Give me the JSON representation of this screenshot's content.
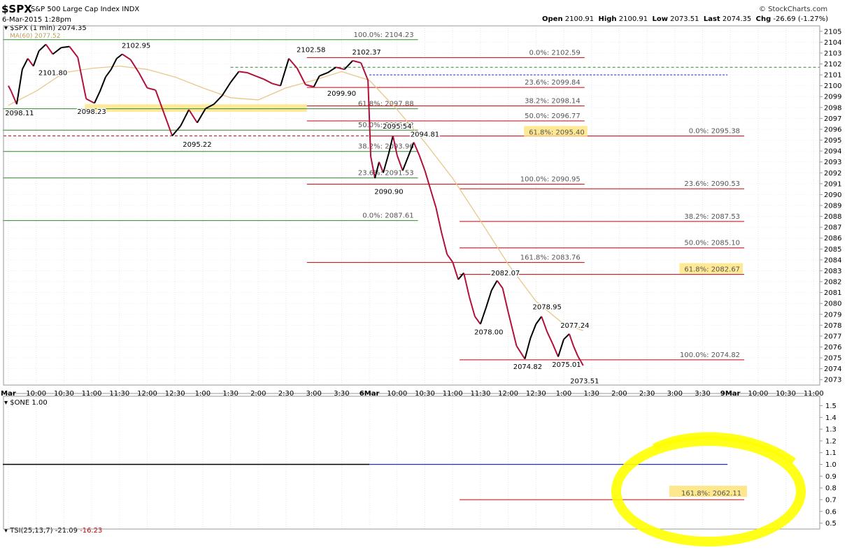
{
  "header": {
    "ticker": "$SPX",
    "name": "S&P 500 Large Cap Index",
    "exchange": "INDX",
    "date": "6-Mar-2015 1:28pm",
    "logo": "© StockCharts.com",
    "open_label": "Open",
    "open": "2100.91",
    "high_label": "High",
    "high": "2100.91",
    "low_label": "Low",
    "low": "2073.51",
    "last_label": "Last",
    "last": "2074.35",
    "chg_label": "Chg",
    "chg": "-26.69 (-1.27%)"
  },
  "legend": {
    "price": "$SPX (1 min) 2074.35",
    "ma": "MA(60) 2077.52",
    "indicator": "$ONE 1.00",
    "tsi": "TSI(25,13,7) -21.09",
    "tsi_signal": "-16.23"
  },
  "colors": {
    "candle_up": "#000000",
    "candle_down": "#b0103a",
    "ma_line": "#e8c88a",
    "fib_red": "#c00000",
    "fib_green": "#2d8a2d",
    "highlight": "#ffe37a",
    "dash_green": "#2d8a2d",
    "dash_blue": "#1f2fbf",
    "circle": "#ffff00"
  },
  "chart_data": [
    {
      "type": "line",
      "title": "",
      "xlabel": "",
      "ylabel": "",
      "ylim": [
        2072.5,
        2105.5
      ],
      "yticks": [
        "2105",
        "2104",
        "2103",
        "2102",
        "2101",
        "2100",
        "2099",
        "2098",
        "2097",
        "2096",
        "2095",
        "2094",
        "2093",
        "2092",
        "2091",
        "2090",
        "2089",
        "2088",
        "2087",
        "2086",
        "2085",
        "2084",
        "2083",
        "2082",
        "2081",
        "2080",
        "2079",
        "2078",
        "2077",
        "2076",
        "2075",
        "2074",
        "2073"
      ],
      "xtick_labels": [
        "Mar",
        "10:00",
        "10:30",
        "11:00",
        "11:30",
        "12:00",
        "12:30",
        "1:00",
        "1:30",
        "2:00",
        "2:30",
        "3:00",
        "3:30",
        "6Mar",
        "10:00",
        "10:30",
        "11:00",
        "11:30",
        "12:00",
        "12:30",
        "1:00",
        "1:30",
        "2:00",
        "2:30",
        "3:00",
        "3:30",
        "9Mar",
        "10:00",
        "10:30",
        "11:00"
      ],
      "price_series": {
        "name": "$SPX (1 min)",
        "x": [
          0,
          0.1,
          0.3,
          0.5,
          0.7,
          0.9,
          1.1,
          1.35,
          1.6,
          1.9,
          2.2,
          2.5,
          2.8,
          3.1,
          3.3,
          3.5,
          3.7,
          3.9,
          4.1,
          4.4,
          4.7,
          5.0,
          5.3,
          5.6,
          5.9,
          6.2,
          6.5,
          6.8,
          7.1,
          7.4,
          7.7,
          8.0,
          8.3,
          8.6,
          8.9,
          9.2,
          9.5,
          9.8,
          10.1,
          10.4,
          10.7,
          11.0,
          11.2,
          11.5,
          11.8,
          12.1,
          12.4,
          12.7,
          12.95,
          13.05,
          13.2,
          13.35,
          13.5,
          13.7,
          13.85,
          14.0,
          14.2,
          14.4,
          14.6,
          14.8,
          15.0,
          15.2,
          15.4,
          15.6,
          15.8,
          16.0,
          16.2,
          16.4,
          16.6,
          16.8,
          17.0,
          17.2,
          17.4,
          17.6,
          17.8,
          18.0,
          18.3,
          18.6,
          18.8,
          19.0,
          19.2,
          19.4,
          19.6,
          19.8,
          20.0,
          20.2,
          20.35,
          20.5,
          20.7
        ],
        "values": [
          2100,
          2099.5,
          2098.3,
          2101.5,
          2102.5,
          2101.8,
          2103.2,
          2103.8,
          2102.9,
          2103.5,
          2103.6,
          2102.6,
          2098.8,
          2098.4,
          2099.5,
          2100.8,
          2101.5,
          2102.5,
          2102.9,
          2102.4,
          2101.2,
          2099.8,
          2099.6,
          2097.5,
          2095.4,
          2096.3,
          2097.8,
          2096.6,
          2097.9,
          2098.3,
          2099.1,
          2100.3,
          2101.3,
          2101.2,
          2100.9,
          2100.6,
          2100.2,
          2100,
          2102.5,
          2101.6,
          2100.1,
          2099.9,
          2100.9,
          2101.2,
          2101.7,
          2101.5,
          2102.3,
          2102.1,
          2100.5,
          2093.5,
          2091.5,
          2093,
          2092,
          2093.8,
          2095.4,
          2093.6,
          2092.2,
          2093.5,
          2094.8,
          2093.6,
          2092.2,
          2090.5,
          2088.8,
          2086.5,
          2084.5,
          2083.8,
          2082.2,
          2082.8,
          2080.6,
          2078.8,
          2078.1,
          2079.6,
          2081.2,
          2082.1,
          2081.4,
          2079.2,
          2076.1,
          2074.9,
          2076.8,
          2078.1,
          2078.8,
          2077.4,
          2076.3,
          2075.1,
          2076.7,
          2077.2,
          2076.1,
          2075.2,
          2074.3
        ]
      },
      "ma_series": {
        "name": "MA(60)",
        "x": [
          0,
          1,
          2,
          3,
          4,
          5,
          6,
          7,
          8,
          9,
          10,
          11,
          12,
          13,
          14,
          15,
          16,
          17,
          18,
          19,
          20,
          20.7
        ],
        "values": [
          2098.2,
          2099.5,
          2101.2,
          2101.6,
          2101.8,
          2101.5,
          2100.8,
          2099.8,
          2098.9,
          2098.7,
          2099.8,
          2100.5,
          2101.3,
          2100.5,
          2097.8,
          2094.8,
          2091.5,
          2087.6,
          2083.6,
          2080.2,
          2078.1,
          2077.5
        ]
      },
      "price_labels": [
        {
          "x": 0.4,
          "value": 2098.11,
          "text": "2098.11",
          "pos": "below"
        },
        {
          "x": 1.6,
          "value": 2101.8,
          "text": "2101.80",
          "pos": "below"
        },
        {
          "x": 3.0,
          "value": 2098.23,
          "text": "2098.23",
          "pos": "below"
        },
        {
          "x": 4.6,
          "value": 2102.95,
          "text": "2102.95",
          "pos": "above"
        },
        {
          "x": 6.8,
          "value": 2095.22,
          "text": "2095.22",
          "pos": "below"
        },
        {
          "x": 10.9,
          "value": 2102.58,
          "text": "2102.58",
          "pos": "above"
        },
        {
          "x": 12.0,
          "value": 2099.9,
          "text": "2099.90",
          "pos": "below"
        },
        {
          "x": 12.9,
          "value": 2102.37,
          "text": "2102.37",
          "pos": "above"
        },
        {
          "x": 14.0,
          "value": 2095.54,
          "text": "2095.54",
          "pos": "above"
        },
        {
          "x": 15.0,
          "value": 2094.81,
          "text": "2094.81",
          "pos": "above"
        },
        {
          "x": 13.7,
          "value": 2090.9,
          "text": "2090.90",
          "pos": "below"
        },
        {
          "x": 17.9,
          "value": 2082.07,
          "text": "2082.07",
          "pos": "above"
        },
        {
          "x": 17.3,
          "value": 2078.0,
          "text": "2078.00",
          "pos": "below"
        },
        {
          "x": 19.4,
          "value": 2078.95,
          "text": "2078.95",
          "pos": "above"
        },
        {
          "x": 20.4,
          "value": 2077.24,
          "text": "2077.24",
          "pos": "above"
        },
        {
          "x": 18.7,
          "value": 2074.82,
          "text": "2074.82",
          "pos": "below"
        },
        {
          "x": 20.1,
          "value": 2075.01,
          "text": "2075.01",
          "pos": "below"
        },
        {
          "x": 20.75,
          "value": 2073.51,
          "text": "2073.51",
          "pos": "below"
        }
      ],
      "fib_lines": [
        {
          "x0": -0.2,
          "x1": 14.75,
          "value": 2104.23,
          "label": "100.0%: 2104.23",
          "color": "green"
        },
        {
          "x0": -0.2,
          "x1": 14.75,
          "value": 2097.88,
          "label": "61.8%: 2097.88",
          "color": "green"
        },
        {
          "x0": -0.2,
          "x1": 14.75,
          "value": 2095.92,
          "label": "50.0%: 2095.92",
          "color": "green"
        },
        {
          "x0": -0.2,
          "x1": 14.75,
          "value": 2093.96,
          "label": "38.2%: 2093.96",
          "color": "green"
        },
        {
          "x0": -0.2,
          "x1": 14.75,
          "value": 2091.53,
          "label": "23.6%: 2091.53",
          "color": "green"
        },
        {
          "x0": -0.2,
          "x1": 14.75,
          "value": 2087.61,
          "label": "0.0%: 2087.61",
          "color": "green"
        },
        {
          "x0": 10.75,
          "x1": 20.75,
          "value": 2102.59,
          "label": "0.0%: 2102.59",
          "color": "red"
        },
        {
          "x0": 10.75,
          "x1": 20.75,
          "value": 2099.84,
          "label": "23.6%: 2099.84",
          "color": "red"
        },
        {
          "x0": 10.75,
          "x1": 20.75,
          "value": 2098.14,
          "label": "38.2%: 2098.14",
          "color": "red"
        },
        {
          "x0": 10.75,
          "x1": 20.75,
          "value": 2096.77,
          "label": "50.0%: 2096.77",
          "color": "red"
        },
        {
          "x0": 10.75,
          "x1": 20.75,
          "value": 2090.95,
          "label": "100.0%: 2090.95",
          "color": "red"
        },
        {
          "x0": 10.75,
          "x1": 20.75,
          "value": 2083.76,
          "label": "161.8%: 2083.76",
          "color": "red"
        },
        {
          "x0": 13.0,
          "x1": 26.5,
          "value": 2095.38,
          "label": "0.0%: 2095.38",
          "color": "red"
        },
        {
          "x0": 16.25,
          "x1": 26.5,
          "value": 2090.53,
          "label": "23.6%: 2090.53",
          "color": "red"
        },
        {
          "x0": 16.25,
          "x1": 26.5,
          "value": 2087.53,
          "label": "38.2%: 2087.53",
          "color": "red"
        },
        {
          "x0": 16.25,
          "x1": 26.5,
          "value": 2085.1,
          "label": "50.0%: 2085.10",
          "color": "red"
        },
        {
          "x0": 16.25,
          "x1": 26.5,
          "value": 2082.67,
          "label": "61.8%: 2082.67",
          "color": "red"
        },
        {
          "x0": 16.25,
          "x1": 26.5,
          "value": 2074.82,
          "label": "100.0%: 2074.82",
          "color": "red"
        }
      ],
      "highlighted_labels": [
        "61.8%: 2095.40",
        "61.8%: 2082.67"
      ]
    },
    {
      "type": "line",
      "title": "",
      "ylim": [
        0.45,
        1.58
      ],
      "yticks": [
        "1.5",
        "1.4",
        "1.3",
        "1.2",
        "1.1",
        "1.0",
        "0.9",
        "0.8",
        "0.7",
        "0.6",
        "0.5"
      ],
      "series": [
        {
          "name": "$ONE",
          "x": [
            -0.2,
            25.5
          ],
          "values": [
            1.0,
            1.0
          ]
        }
      ],
      "annotation": {
        "label": "161.8%: 2062.11",
        "value": 0.7
      }
    }
  ]
}
